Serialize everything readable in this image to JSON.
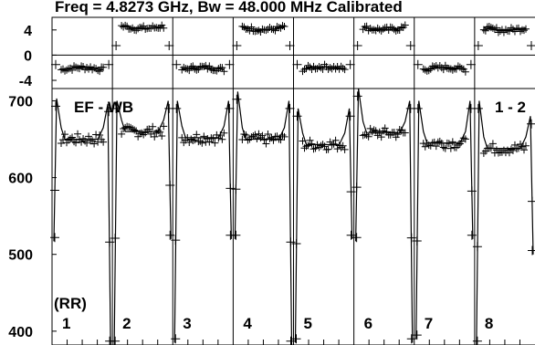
{
  "title": "Freq = 4.8273 GHz, Bw = 48.000 MHz Calibrated",
  "chart_data": {
    "type": "line",
    "colors": {
      "line": "#000000",
      "background": "#ffffff"
    },
    "top_panel": {
      "ylim": [
        -5.3,
        6.0
      ],
      "ytick_labels": [
        "4",
        "0",
        "-4"
      ],
      "ytick_values": [
        4,
        0,
        -4
      ]
    },
    "bottom_panel": {
      "ylim": [
        382,
        716
      ],
      "ytick_labels": [
        "700",
        "600",
        "500",
        "400"
      ],
      "ytick_values": [
        700,
        600,
        500,
        400
      ],
      "annotation_left": "EF - WB",
      "annotation_right": "1 - 2",
      "row_label": "(RR)"
    },
    "panels": [
      {
        "label": "1",
        "phase": -2.3,
        "plateau": 650,
        "peak_start": 703,
        "peak_end": 696,
        "dip_start": 517,
        "dip_end": 382
      },
      {
        "label": "2",
        "phase": 4.6,
        "plateau": 660,
        "peak_start": 700,
        "peak_end": 700,
        "dip_start": 382,
        "dip_end": 520
      },
      {
        "label": "3",
        "phase": -2.3,
        "plateau": 652,
        "peak_start": 700,
        "peak_end": 700,
        "dip_start": 385,
        "dip_end": 520
      },
      {
        "label": "4",
        "phase": 4.4,
        "plateau": 650,
        "peak_start": 712,
        "peak_end": 700,
        "dip_start": 520,
        "dip_end": 382
      },
      {
        "label": "5",
        "phase": -2.2,
        "plateau": 643,
        "peak_start": 690,
        "peak_end": 690,
        "dip_start": 385,
        "dip_end": 520
      },
      {
        "label": "6",
        "phase": 4.4,
        "plateau": 658,
        "peak_start": 716,
        "peak_end": 700,
        "dip_start": 517,
        "dip_end": 385
      },
      {
        "label": "7",
        "phase": -2.3,
        "plateau": 645,
        "peak_start": 700,
        "peak_end": 700,
        "dip_start": 390,
        "dip_end": 520
      },
      {
        "label": "8",
        "phase": 4.3,
        "plateau": 638,
        "peak_start": 700,
        "peak_end": 680,
        "dip_start": 382,
        "dip_end": 500
      }
    ]
  }
}
